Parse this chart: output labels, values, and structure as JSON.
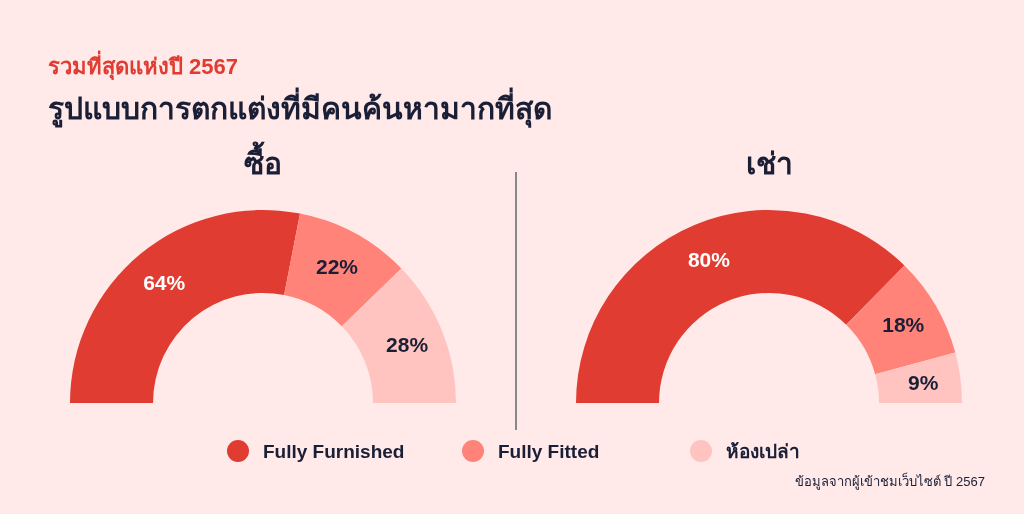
{
  "chart_data": [
    {
      "type": "donut",
      "title": "ซื้อ",
      "categories": [
        "Fully Furnished",
        "Fully Fitted",
        "ห้องเปล่า"
      ],
      "values": [
        64,
        22,
        28
      ],
      "value_labels": [
        "64%",
        "22%",
        "28%"
      ],
      "colors": [
        "#e03c31",
        "#ff8379",
        "#ffc4c0"
      ],
      "legend": "bottom",
      "annotations": [
        "รวมที่สุดแห่งปี 2567",
        "รูปแบบการตกแต่งที่มีคนค้นหามากที่สุด"
      ]
    },
    {
      "type": "donut",
      "title": "เช่า",
      "categories": [
        null,
        null,
        null
      ],
      "values": [
        80,
        18,
        9
      ],
      "value_labels": [
        "80%",
        "18%",
        "9%"
      ],
      "colors": [
        "#e03c31",
        "#ff8379",
        "#ffc4c0"
      ],
      "annotations": [
        "ข้อมูลจากผู้เข้าชมเว็บไซต์ ปี 2567"
      ]
    }
  ]
}
